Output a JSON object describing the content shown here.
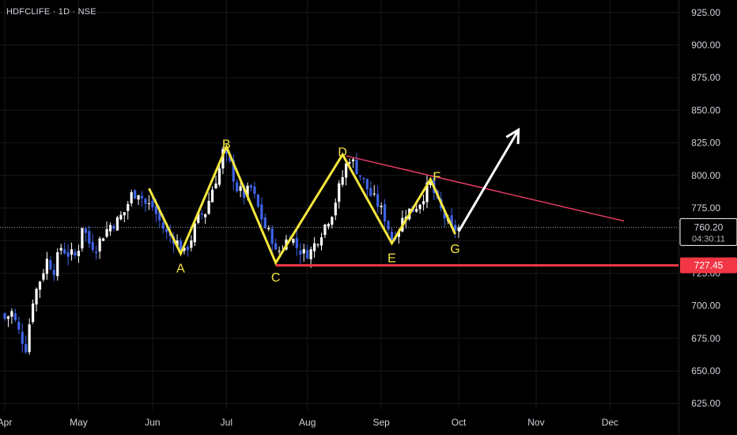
{
  "header": {
    "title": "HDFCLIFE · 1D · NSE"
  },
  "colors": {
    "background": "#000000",
    "grid": "#1a1a1a",
    "candle_up": "#ffffff",
    "candle_down": "#3f63e6",
    "pattern": "#f5e63c",
    "trendline": "#e03a62",
    "support": "#f23645",
    "arrow": "#ffffff"
  },
  "price_badge": {
    "price": "760.20",
    "countdown": "04:30:11"
  },
  "support_badge": {
    "price": "727.45"
  },
  "chart_data": {
    "type": "candlestick",
    "title": "HDFCLIFE · 1D · NSE",
    "ylim": [
      615,
      930
    ],
    "y_ticks": [
      "625.00",
      "650.00",
      "675.00",
      "700.00",
      "725.00",
      "750.00",
      "775.00",
      "800.00",
      "825.00",
      "850.00",
      "875.00",
      "900.00",
      "925.00"
    ],
    "x_ticks": [
      {
        "label": "Apr",
        "x": 0
      },
      {
        "label": "May",
        "x": 21
      },
      {
        "label": "Jun",
        "x": 42
      },
      {
        "label": "Jul",
        "x": 63
      },
      {
        "label": "Aug",
        "x": 86
      },
      {
        "label": "Sep",
        "x": 107
      },
      {
        "label": "Oct",
        "x": 129
      },
      {
        "label": "Nov",
        "x": 151
      },
      {
        "label": "Dec",
        "x": 172
      }
    ],
    "grid": true,
    "last_price": 760.2,
    "support_level": 727.45,
    "close_path": [
      [
        0,
        690
      ],
      [
        2,
        695
      ],
      [
        4,
        680
      ],
      [
        6,
        668
      ],
      [
        8,
        705
      ],
      [
        10,
        720
      ],
      [
        12,
        735
      ],
      [
        14,
        728
      ],
      [
        16,
        745
      ],
      [
        18,
        740
      ],
      [
        20,
        738
      ],
      [
        21,
        745
      ],
      [
        22,
        762
      ],
      [
        24,
        748
      ],
      [
        26,
        745
      ],
      [
        28,
        755
      ],
      [
        30,
        762
      ],
      [
        32,
        765
      ],
      [
        34,
        772
      ],
      [
        36,
        785
      ],
      [
        38,
        788
      ],
      [
        40,
        778
      ],
      [
        42,
        776
      ],
      [
        44,
        765
      ],
      [
        46,
        755
      ],
      [
        48,
        752
      ],
      [
        50,
        745
      ],
      [
        51,
        740
      ],
      [
        53,
        752
      ],
      [
        55,
        768
      ],
      [
        57,
        772
      ],
      [
        59,
        790
      ],
      [
        61,
        805
      ],
      [
        62,
        818
      ],
      [
        64,
        808
      ],
      [
        66,
        790
      ],
      [
        68,
        785
      ],
      [
        70,
        790
      ],
      [
        72,
        775
      ],
      [
        74,
        760
      ],
      [
        76,
        752
      ],
      [
        77,
        740
      ],
      [
        79,
        745
      ],
      [
        81,
        755
      ],
      [
        83,
        745
      ],
      [
        85,
        740
      ],
      [
        87,
        742
      ],
      [
        89,
        752
      ],
      [
        91,
        762
      ],
      [
        93,
        772
      ],
      [
        95,
        790
      ],
      [
        97,
        808
      ],
      [
        98,
        814
      ],
      [
        100,
        805
      ],
      [
        102,
        795
      ],
      [
        104,
        785
      ],
      [
        106,
        778
      ],
      [
        108,
        768
      ],
      [
        110,
        752
      ],
      [
        112,
        760
      ],
      [
        114,
        772
      ],
      [
        116,
        774
      ],
      [
        118,
        780
      ],
      [
        120,
        790
      ],
      [
        121,
        795
      ],
      [
        123,
        778
      ],
      [
        125,
        768
      ],
      [
        127,
        758
      ],
      [
        129,
        760.2
      ]
    ],
    "pattern_points": [
      {
        "label": "",
        "x": 41,
        "y": 790
      },
      {
        "label": "A",
        "x": 50,
        "y": 740
      },
      {
        "label": "B",
        "x": 63,
        "y": 822
      },
      {
        "label": "C",
        "x": 77,
        "y": 733
      },
      {
        "label": "D",
        "x": 96,
        "y": 816
      },
      {
        "label": "E",
        "x": 110,
        "y": 748
      },
      {
        "label": "F",
        "x": 121,
        "y": 797
      },
      {
        "label": "G",
        "x": 128,
        "y": 755
      }
    ],
    "trendline": {
      "from": {
        "x": 97,
        "y": 815
      },
      "to": {
        "x": 176,
        "y": 765
      }
    },
    "support_line": {
      "from": {
        "x": 77,
        "y": 731
      },
      "to": {
        "x": 177,
        "y": 731
      }
    },
    "arrow": {
      "from": {
        "x": 129,
        "y": 757
      },
      "to": {
        "x": 146,
        "y": 835
      }
    }
  }
}
